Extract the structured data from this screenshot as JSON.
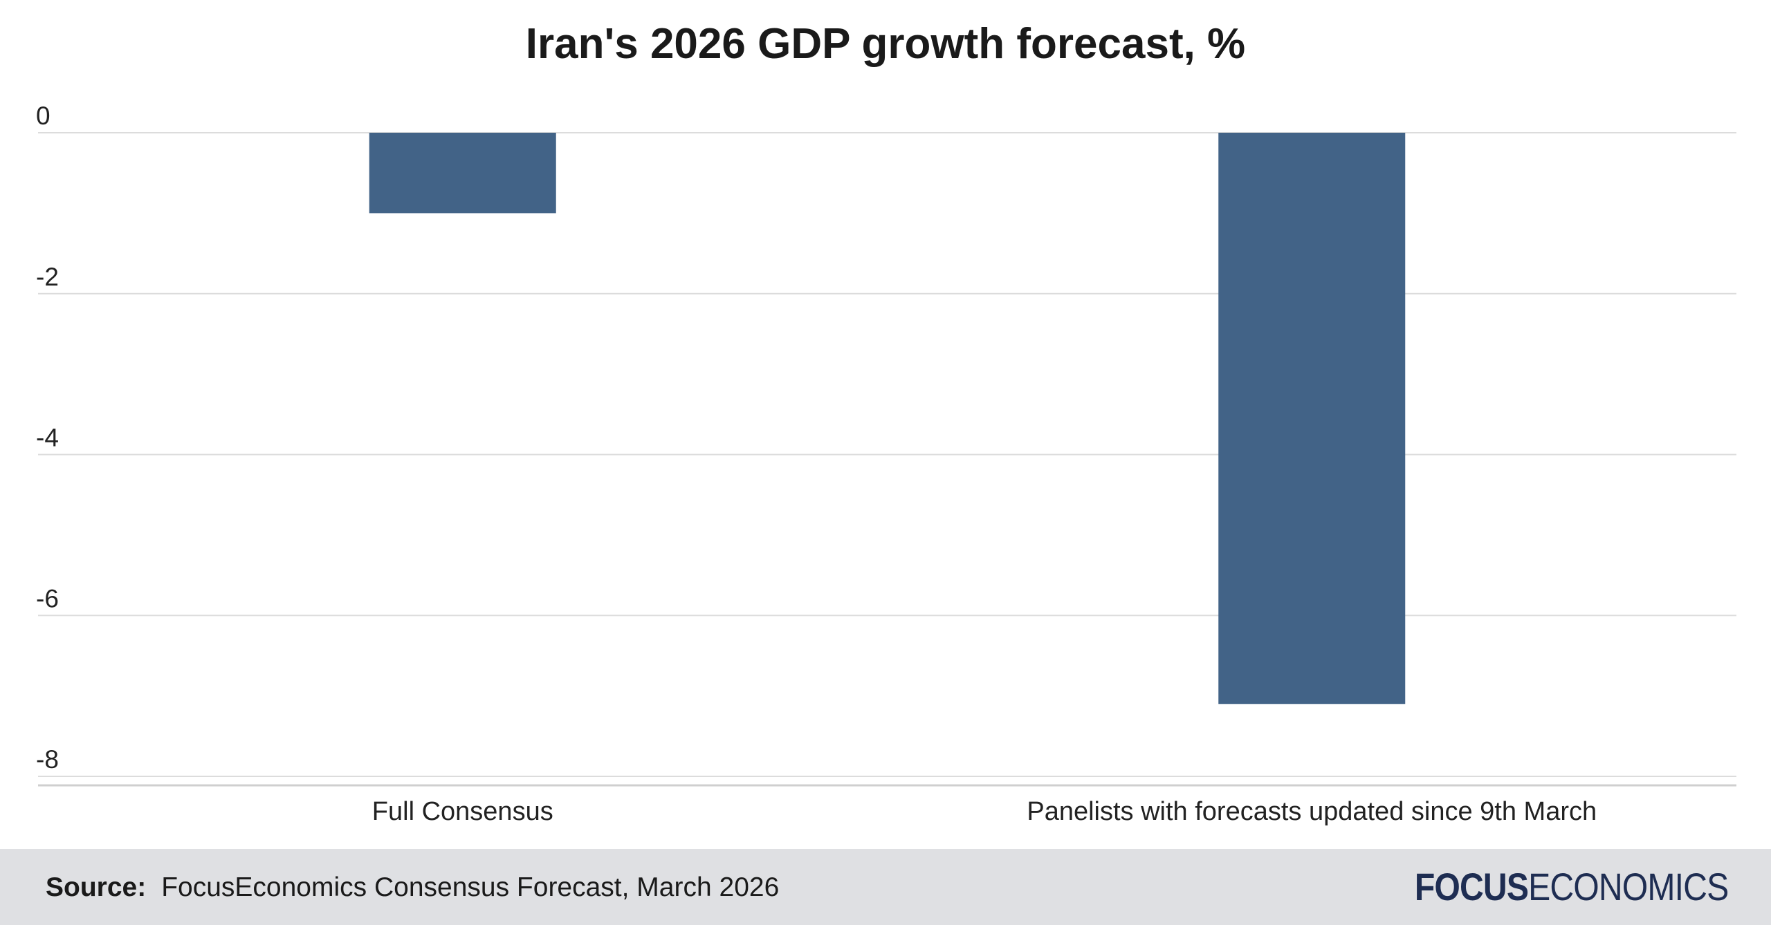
{
  "chart_data": {
    "type": "bar",
    "title": "Iran's 2026 GDP growth forecast, %",
    "categories": [
      "Full Consensus",
      "Panelists with forecasts updated since 9th March"
    ],
    "values": [
      -1.0,
      -7.1
    ],
    "yticks": [
      "0",
      "-2",
      "-4",
      "-6",
      "-8"
    ],
    "ylim": [
      -8,
      0
    ],
    "grid": true,
    "bar_color": "#426387",
    "xlabel": "",
    "ylabel": ""
  },
  "footer": {
    "source_label": "Source:",
    "source_text": "FocusEconomics Consensus Forecast, March 2026",
    "brand_bold": "FOCUS",
    "brand_rest": "ECONOMICS"
  }
}
